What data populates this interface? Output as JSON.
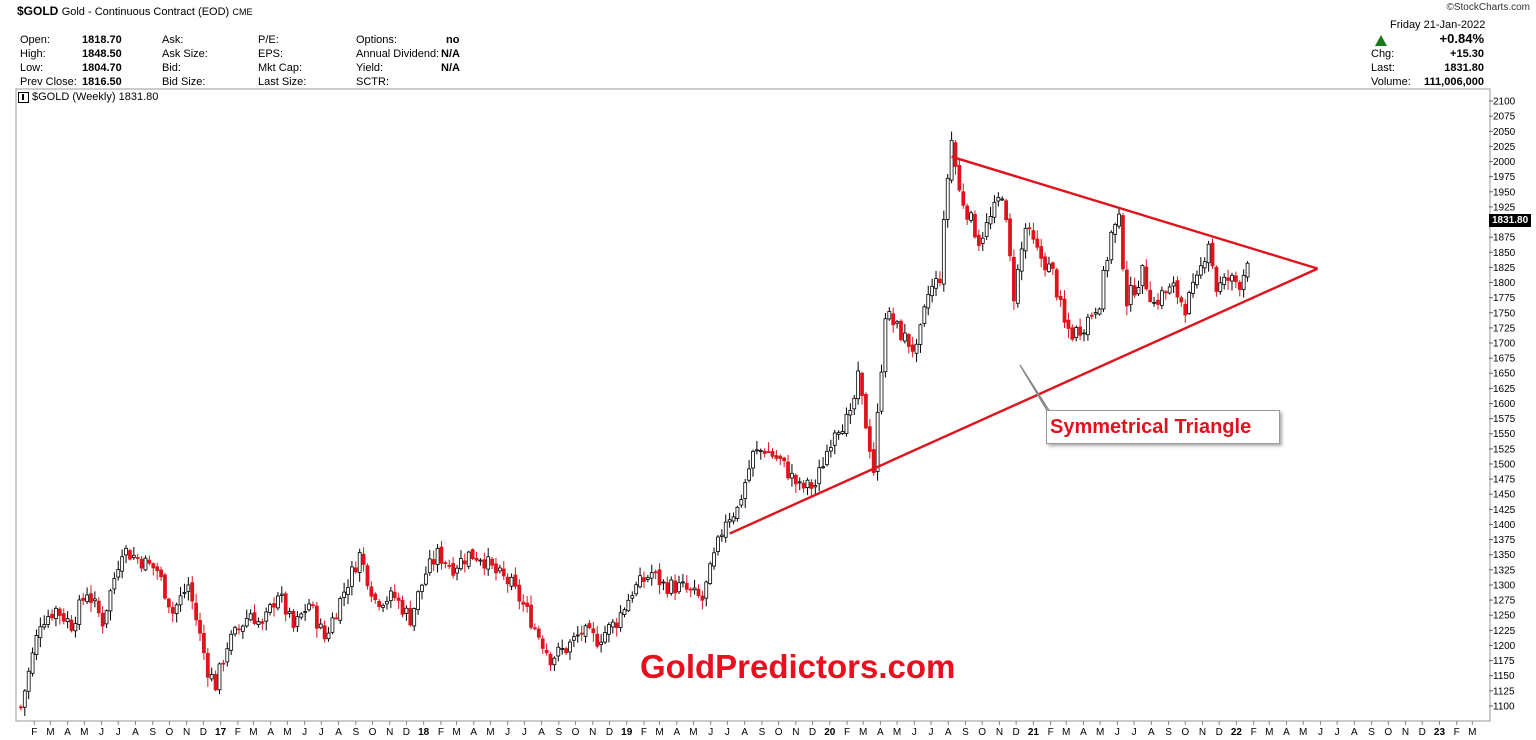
{
  "header": {
    "symbol": "$GOLD",
    "description": "Gold - Continuous Contract (EOD)",
    "exchange": "CME",
    "brand": "©StockCharts.com",
    "date": "Friday   21-Jan-2022",
    "fields": {
      "open_label": "Open:",
      "open": "1818.70",
      "high_label": "High:",
      "high": "1848.50",
      "low_label": "Low:",
      "low": "1804.70",
      "prev_label": "Prev Close:",
      "prev": "1816.50",
      "ask_label": "Ask:",
      "asksize_label": "Ask Size:",
      "bid_label": "Bid:",
      "bidsize_label": "Bid Size:",
      "pe_label": "P/E:",
      "eps_label": "EPS:",
      "mktcap_label": "Mkt Cap:",
      "lastsize_label": "Last Size:",
      "options_label": "Options:",
      "options": "no",
      "div_label": "Annual Dividend:",
      "div": "N/A",
      "yield_label": "Yield:",
      "yield": "N/A",
      "sctr_label": "SCTR:"
    },
    "pct_change": "+0.84%",
    "chg_label": "Chg:",
    "chg": "+15.30",
    "last_label": "Last:",
    "last": "1831.80",
    "volume_label": "Volume:",
    "volume": "111,006,000",
    "up_color": "#1a7a1a"
  },
  "legend": "$GOLD (Weekly) 1831.80",
  "last_price_tag": "1831.80",
  "annotation": {
    "pattern_label": "Symmetrical Triangle",
    "watermark": "GoldPredictors.com",
    "line_color": "#e0131d"
  },
  "chart_data": {
    "type": "candlestick",
    "title": "$GOLD (Weekly) 1831.80",
    "xlabel": "",
    "ylabel": "",
    "y_range": [
      1085,
      2110
    ],
    "y_ticks": [
      1100,
      1125,
      1150,
      1175,
      1200,
      1225,
      1250,
      1275,
      1300,
      1325,
      1350,
      1375,
      1400,
      1425,
      1450,
      1475,
      1500,
      1525,
      1550,
      1575,
      1600,
      1625,
      1650,
      1675,
      1700,
      1725,
      1750,
      1775,
      1800,
      1825,
      1850,
      1875,
      1900,
      1925,
      1950,
      1975,
      2000,
      2025,
      2050,
      2075,
      2100
    ],
    "x_range": [
      "2016-01-01",
      "2023-03-31"
    ],
    "x_tick_labels": [
      "F",
      "M",
      "A",
      "M",
      "J",
      "J",
      "A",
      "S",
      "O",
      "N",
      "D",
      "17",
      "F",
      "M",
      "A",
      "M",
      "J",
      "J",
      "A",
      "S",
      "O",
      "N",
      "D",
      "18",
      "F",
      "M",
      "A",
      "M",
      "J",
      "J",
      "A",
      "S",
      "O",
      "N",
      "D",
      "19",
      "F",
      "M",
      "A",
      "M",
      "J",
      "J",
      "A",
      "S",
      "O",
      "N",
      "D",
      "20",
      "F",
      "M",
      "A",
      "M",
      "J",
      "J",
      "A",
      "S",
      "O",
      "N",
      "D",
      "21",
      "F",
      "M",
      "A",
      "M",
      "J",
      "J",
      "A",
      "S",
      "O",
      "N",
      "D",
      "22",
      "F",
      "M",
      "A",
      "M",
      "J",
      "J",
      "A",
      "S",
      "O",
      "N",
      "D",
      "23",
      "F",
      "M"
    ],
    "up_color": "#000000",
    "down_color": "#e0131d",
    "price_path": [
      [
        "2016-01-08",
        1098
      ],
      [
        "2016-02-12",
        1240
      ],
      [
        "2016-03-11",
        1260
      ],
      [
        "2016-04-08",
        1235
      ],
      [
        "2016-05-06",
        1290
      ],
      [
        "2016-06-03",
        1240
      ],
      [
        "2016-07-08",
        1360
      ],
      [
        "2016-08-12",
        1340
      ],
      [
        "2016-09-09",
        1325
      ],
      [
        "2016-10-07",
        1255
      ],
      [
        "2016-11-04",
        1300
      ],
      [
        "2016-12-09",
        1160
      ],
      [
        "2016-12-23",
        1135
      ],
      [
        "2017-01-13",
        1200
      ],
      [
        "2017-02-24",
        1255
      ],
      [
        "2017-03-17",
        1230
      ],
      [
        "2017-04-14",
        1288
      ],
      [
        "2017-05-12",
        1228
      ],
      [
        "2017-06-09",
        1270
      ],
      [
        "2017-07-07",
        1212
      ],
      [
        "2017-08-11",
        1290
      ],
      [
        "2017-09-08",
        1350
      ],
      [
        "2017-10-06",
        1275
      ],
      [
        "2017-11-10",
        1280
      ],
      [
        "2017-12-08",
        1245
      ],
      [
        "2018-01-05",
        1320
      ],
      [
        "2018-01-26",
        1350
      ],
      [
        "2018-02-23",
        1330
      ],
      [
        "2018-03-23",
        1350
      ],
      [
        "2018-04-13",
        1348
      ],
      [
        "2018-05-11",
        1320
      ],
      [
        "2018-06-08",
        1300
      ],
      [
        "2018-07-06",
        1255
      ],
      [
        "2018-08-17",
        1180
      ],
      [
        "2018-09-14",
        1195
      ],
      [
        "2018-10-12",
        1222
      ],
      [
        "2018-11-09",
        1210
      ],
      [
        "2018-12-14",
        1240
      ],
      [
        "2019-01-11",
        1290
      ],
      [
        "2019-02-15",
        1320
      ],
      [
        "2019-03-08",
        1300
      ],
      [
        "2019-04-12",
        1295
      ],
      [
        "2019-05-17",
        1275
      ],
      [
        "2019-06-07",
        1345
      ],
      [
        "2019-06-28",
        1410
      ],
      [
        "2019-07-19",
        1425
      ],
      [
        "2019-08-16",
        1515
      ],
      [
        "2019-09-06",
        1525
      ],
      [
        "2019-10-04",
        1505
      ],
      [
        "2019-11-08",
        1460
      ],
      [
        "2019-12-06",
        1465
      ],
      [
        "2020-01-10",
        1560
      ],
      [
        "2020-02-07",
        1575
      ],
      [
        "2020-02-21",
        1640
      ],
      [
        "2020-03-13",
        1530
      ],
      [
        "2020-03-20",
        1490
      ],
      [
        "2020-04-10",
        1750
      ],
      [
        "2020-05-08",
        1715
      ],
      [
        "2020-06-05",
        1685
      ],
      [
        "2020-06-26",
        1780
      ],
      [
        "2020-07-17",
        1810
      ],
      [
        "2020-07-31",
        1975
      ],
      [
        "2020-08-07",
        2035
      ],
      [
        "2020-08-21",
        1950
      ],
      [
        "2020-09-25",
        1870
      ],
      [
        "2020-10-16",
        1905
      ],
      [
        "2020-11-06",
        1950
      ],
      [
        "2020-11-27",
        1780
      ],
      [
        "2020-12-18",
        1890
      ],
      [
        "2021-01-08",
        1850
      ],
      [
        "2021-02-05",
        1815
      ],
      [
        "2021-02-26",
        1730
      ],
      [
        "2021-03-12",
        1715
      ],
      [
        "2021-04-02",
        1730
      ],
      [
        "2021-04-30",
        1770
      ],
      [
        "2021-05-21",
        1880
      ],
      [
        "2021-06-04",
        1900
      ],
      [
        "2021-06-18",
        1770
      ],
      [
        "2021-07-16",
        1815
      ],
      [
        "2021-08-06",
        1765
      ],
      [
        "2021-08-20",
        1780
      ],
      [
        "2021-09-10",
        1790
      ],
      [
        "2021-10-01",
        1760
      ],
      [
        "2021-10-22",
        1800
      ],
      [
        "2021-11-12",
        1870
      ],
      [
        "2021-11-26",
        1790
      ],
      [
        "2021-12-17",
        1805
      ],
      [
        "2022-01-07",
        1800
      ],
      [
        "2022-01-21",
        1831.8
      ]
    ],
    "triangle_upper": [
      [
        "2020-08-07",
        2008
      ],
      [
        "2022-05-27",
        1823
      ]
    ],
    "triangle_lower": [
      [
        "2019-07-05",
        1385
      ],
      [
        "2022-05-27",
        1823
      ]
    ]
  }
}
